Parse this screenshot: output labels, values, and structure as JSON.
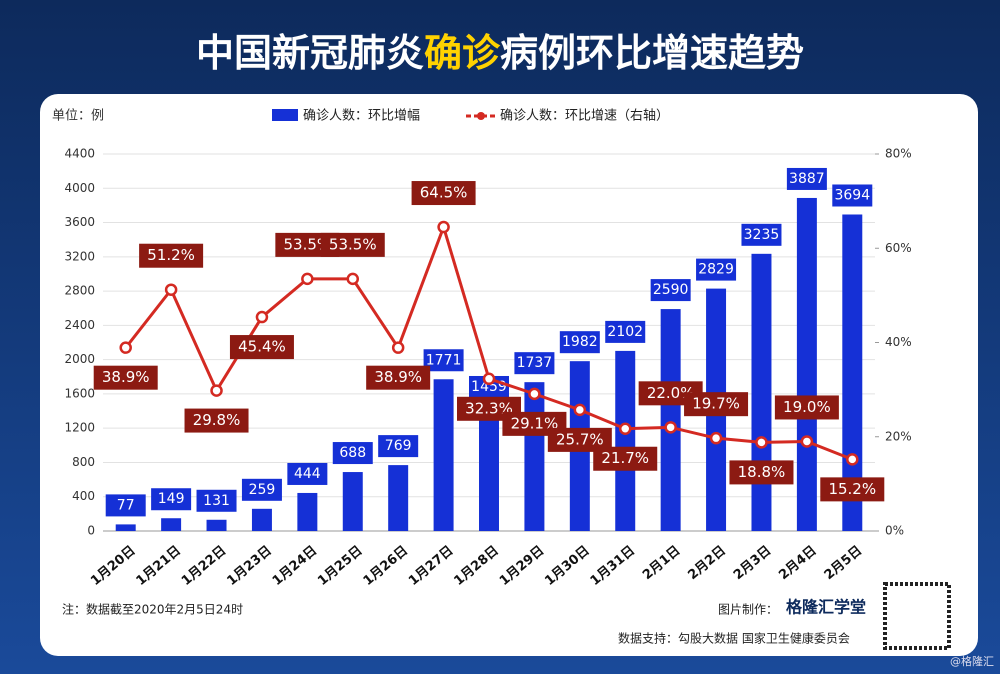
{
  "chart_data": {
    "type": "bar-line",
    "title_parts": [
      "中国新冠肺炎",
      "确诊",
      "病例环比增速趋势"
    ],
    "unit_label": "单位：例",
    "categories": [
      "1月20日",
      "1月21日",
      "1月22日",
      "1月23日",
      "1月24日",
      "1月25日",
      "1月26日",
      "1月27日",
      "1月28日",
      "1月29日",
      "1月30日",
      "1月31日",
      "2月1日",
      "2月2日",
      "2月3日",
      "2月4日",
      "2月5日"
    ],
    "series": [
      {
        "name": "确诊人数：环比增幅",
        "kind": "bar",
        "color": "#1530d6",
        "values": [
          77,
          149,
          131,
          259,
          444,
          688,
          769,
          1771,
          1459,
          1737,
          1982,
          2102,
          2590,
          2829,
          3235,
          3887,
          3694
        ]
      },
      {
        "name": "确诊人数：环比增速（右轴）",
        "kind": "line",
        "axis": "y2",
        "color": "#d42a22",
        "values": [
          38.9,
          51.2,
          29.8,
          45.4,
          53.5,
          53.5,
          38.9,
          64.5,
          32.3,
          29.1,
          25.7,
          21.7,
          22.0,
          19.7,
          18.8,
          19.0,
          15.2
        ],
        "value_labels": [
          "38.9%",
          "51.2%",
          "29.8%",
          "45.4%",
          "53.5%",
          "53.5%",
          "38.9%",
          "64.5%",
          "32.3%",
          "29.1%",
          "25.7%",
          "21.7%",
          "22.0%",
          "19.7%",
          "18.8%",
          "19.0%",
          "15.2%"
        ]
      }
    ],
    "ylim": [
      0,
      4400
    ],
    "yticks": [
      0,
      400,
      800,
      1200,
      1600,
      2000,
      2400,
      2800,
      3200,
      3600,
      4000,
      4400
    ],
    "y2lim": [
      0,
      80
    ],
    "y2ticks": [
      {
        "value": 0,
        "label": "0%"
      },
      {
        "value": 20,
        "label": "20%"
      },
      {
        "value": 40,
        "label": "40%"
      },
      {
        "value": 60,
        "label": "60%"
      },
      {
        "value": 80,
        "label": "80%"
      }
    ],
    "grid": true,
    "note": "注：数据截至2020年2月5日24时",
    "credit_label": "图片制作：",
    "credit_name": "格隆汇学堂",
    "source": "数据支持：勾股大数据  国家卫生健康委员会",
    "watermark": "@格隆汇"
  }
}
